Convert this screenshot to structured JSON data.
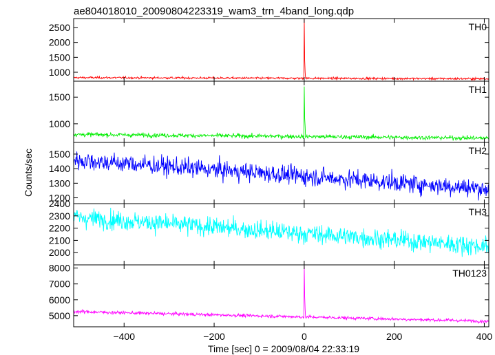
{
  "chart_data": [
    {
      "type": "line",
      "title": "ae804018010_20090804223319_wam3_trn_4band_long.qdp",
      "xlabel": "Time [sec] 0 = 2009/08/04 22:33:19",
      "ylabel": "Counts/sec",
      "xlim": [
        -512,
        410
      ],
      "xticks": [
        -400,
        -200,
        0,
        200,
        400
      ],
      "grid": false,
      "panels": [
        {
          "name": "TH0",
          "color": "#ff0000",
          "ylim": [
            700,
            2800
          ],
          "yticks": [
            1000,
            1500,
            2000,
            2500
          ],
          "base_start": 820,
          "base_end": 780,
          "noise": 25,
          "peak": {
            "t": 0,
            "value": 2800,
            "decay": [
              1400,
              1000
            ]
          }
        },
        {
          "name": "TH1",
          "color": "#00ee00",
          "ylim": [
            650,
            1800
          ],
          "yticks": [
            1000,
            1500
          ],
          "base_start": 800,
          "base_end": 730,
          "noise": 28,
          "peak": {
            "t": 0,
            "value": 1700,
            "decay": [
              1100,
              950
            ]
          }
        },
        {
          "name": "TH2",
          "color": "#0000ff",
          "ylim": [
            1160,
            1580
          ],
          "yticks": [
            1200,
            1300,
            1400,
            1500
          ],
          "base_start": 1460,
          "base_end": 1260,
          "noise": 45,
          "peak": null
        },
        {
          "name": "TH3",
          "color": "#00ffff",
          "ylim": [
            1900,
            2400
          ],
          "yticks": [
            2000,
            2100,
            2200,
            2300,
            2400
          ],
          "base_start": 2290,
          "base_end": 2050,
          "noise": 55,
          "peak": null
        },
        {
          "name": "TH0123",
          "color": "#ff00ff",
          "ylim": [
            4300,
            8200
          ],
          "yticks": [
            5000,
            6000,
            7000,
            8000
          ],
          "base_start": 5260,
          "base_end": 4650,
          "noise": 70,
          "peak": {
            "t": 0,
            "value": 8100,
            "decay": [
              6200,
              5400
            ]
          }
        }
      ]
    }
  ]
}
